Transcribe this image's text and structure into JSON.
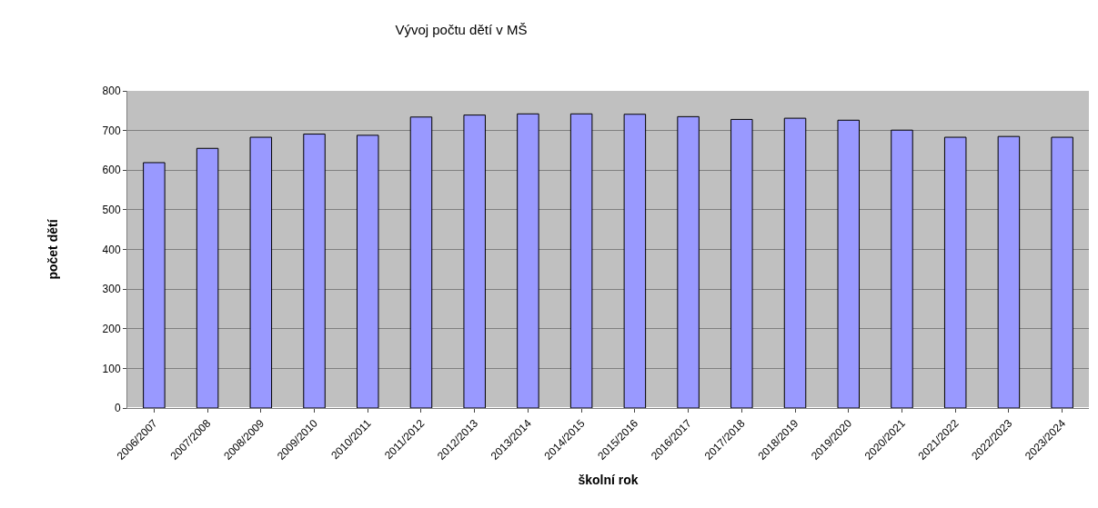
{
  "chart_data": {
    "type": "bar",
    "title": "Vývoj počtu dětí v MŠ",
    "xlabel": "školní rok",
    "ylabel": "počet dětí",
    "categories": [
      "2006/2007",
      "2007/2008",
      "2008/2009",
      "2009/2010",
      "2010/2011",
      "2011/2012",
      "2012/2013",
      "2013/2014",
      "2014/2015",
      "2015/2016",
      "2016/2017",
      "2017/2018",
      "2018/2019",
      "2019/2020",
      "2020/2021",
      "2021/2022",
      "2022/2023",
      "2023/2024"
    ],
    "values": [
      619,
      655,
      683,
      691,
      688,
      734,
      739,
      742,
      742,
      741,
      735,
      728,
      731,
      726,
      701,
      683,
      685,
      683
    ],
    "color": "#9999ff",
    "ylim": [
      0,
      800
    ],
    "yticks": [
      0,
      100,
      200,
      300,
      400,
      500,
      600,
      700,
      800
    ],
    "grid": "y",
    "legend": false
  }
}
